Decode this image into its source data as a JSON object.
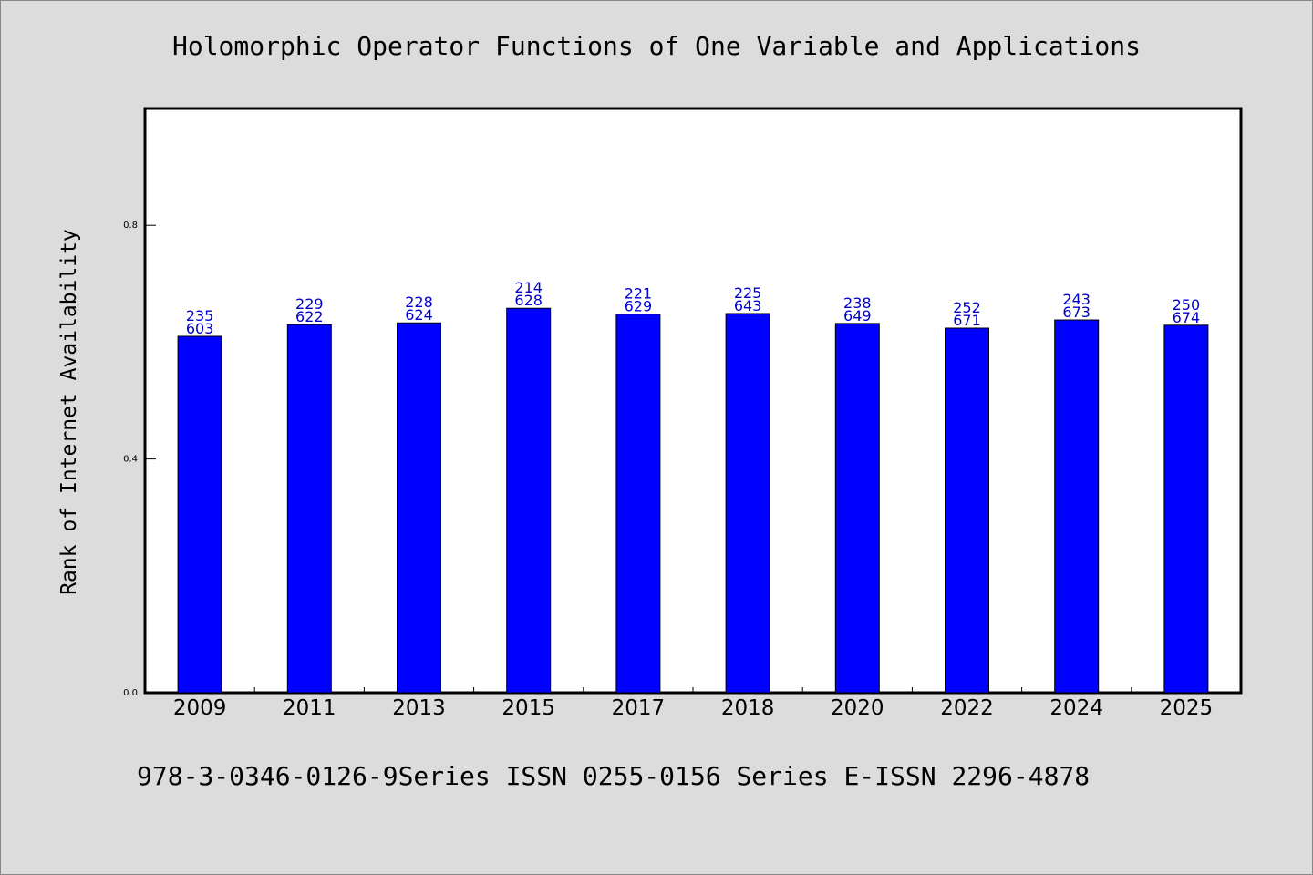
{
  "title": "Holomorphic Operator Functions of One Variable and Applications",
  "footer": "978-3-0346-0126-9Series ISSN 0255-0156 Series E-ISSN 2296-4878",
  "chart_data": {
    "type": "bar",
    "title": "Holomorphic Operator Functions of One Variable and Applications",
    "xlabel": "",
    "ylabel": "Rank of Internet Availability",
    "ylim": [
      0,
      1.0
    ],
    "yticks": [
      "0.0",
      "0.4",
      "0.8"
    ],
    "grid": false,
    "bar_color": "#0000ff",
    "label_color": "#0000cc",
    "categories": [
      "2009",
      "2011",
      "2013",
      "2015",
      "2017",
      "2018",
      "2020",
      "2022",
      "2024",
      "2025"
    ],
    "values": [
      0.61,
      0.63,
      0.633,
      0.658,
      0.648,
      0.649,
      0.632,
      0.624,
      0.638,
      0.629
    ],
    "labels_top": [
      "235",
      "229",
      "228",
      "214",
      "221",
      "225",
      "238",
      "252",
      "243",
      "250"
    ],
    "labels_bottom": [
      "603",
      "622",
      "624",
      "628",
      "629",
      "643",
      "649",
      "671",
      "673",
      "674"
    ]
  }
}
